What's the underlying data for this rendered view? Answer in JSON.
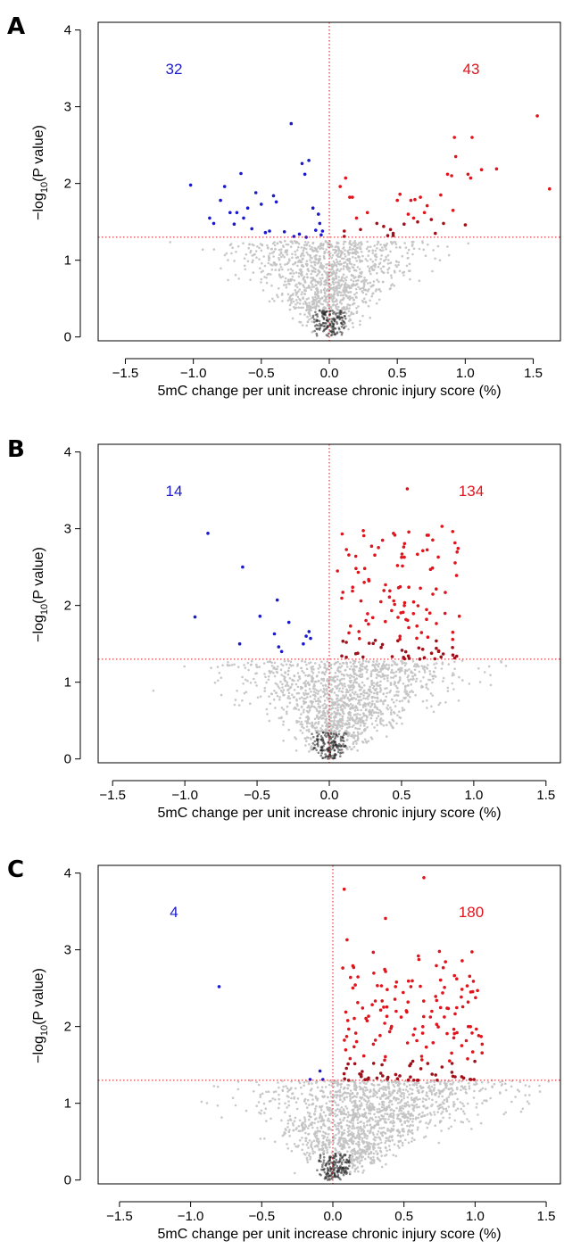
{
  "colors": {
    "negative": "#1a1acc",
    "positive": "#e0141c",
    "cloud_light": "#c2c2c2",
    "cloud_dark": "#202020",
    "threshold_line": "#e0141c"
  },
  "chart_data": [
    {
      "type": "scatter",
      "panel": "A",
      "xlabel": "5mC change per unit increase chronic injury score (%)",
      "ylabel": "−log10(P value)",
      "xlim": [
        -1.7,
        1.7
      ],
      "ylim": [
        -0.05,
        4.1
      ],
      "xticks": [
        -1.5,
        -1.0,
        -0.5,
        0.0,
        0.5,
        1.0,
        1.5
      ],
      "xtick_labels": [
        "−1.5",
        "−1.0",
        "−0.5",
        "0.0",
        "0.5",
        "1.0",
        "1.5"
      ],
      "yticks": [
        0,
        1,
        2,
        3,
        4
      ],
      "ytick_labels": [
        "0",
        "1",
        "2",
        "3",
        "4"
      ],
      "threshold_y": 1.3,
      "vline_x": 0,
      "neg_count": "32",
      "pos_count": "43",
      "cloud_xmax": 1.0,
      "cloud_ymax": 1.25,
      "cloud_n": 1300,
      "neg_points": [
        [
          -1.02,
          1.98
        ],
        [
          -0.88,
          1.55
        ],
        [
          -0.85,
          1.48
        ],
        [
          -0.8,
          1.78
        ],
        [
          -0.77,
          1.96
        ],
        [
          -0.73,
          1.62
        ],
        [
          -0.7,
          1.47
        ],
        [
          -0.68,
          1.62
        ],
        [
          -0.65,
          2.13
        ],
        [
          -0.63,
          1.55
        ],
        [
          -0.6,
          1.68
        ],
        [
          -0.57,
          1.41
        ],
        [
          -0.54,
          1.88
        ],
        [
          -0.5,
          1.73
        ],
        [
          -0.47,
          1.36
        ],
        [
          -0.44,
          1.38
        ],
        [
          -0.41,
          1.84
        ],
        [
          -0.39,
          1.76
        ],
        [
          -0.33,
          1.37
        ],
        [
          -0.28,
          2.78
        ],
        [
          -0.26,
          1.31
        ],
        [
          -0.2,
          2.26
        ],
        [
          -0.18,
          2.12
        ],
        [
          -0.17,
          1.3
        ],
        [
          -0.15,
          2.3
        ],
        [
          -0.12,
          1.68
        ],
        [
          -0.1,
          1.39
        ],
        [
          -0.08,
          1.6
        ],
        [
          -0.07,
          1.48
        ],
        [
          -0.05,
          1.38
        ],
        [
          -0.22,
          1.34
        ],
        [
          -0.06,
          1.33
        ]
      ],
      "pos_points": [
        [
          0.08,
          1.96
        ],
        [
          0.11,
          1.38
        ],
        [
          0.11,
          1.31
        ],
        [
          0.12,
          2.07
        ],
        [
          0.15,
          1.82
        ],
        [
          0.17,
          1.82
        ],
        [
          0.2,
          1.55
        ],
        [
          0.23,
          1.4
        ],
        [
          0.28,
          1.62
        ],
        [
          0.35,
          1.48
        ],
        [
          0.4,
          1.44
        ],
        [
          0.43,
          1.32
        ],
        [
          0.45,
          1.4
        ],
        [
          0.47,
          1.35
        ],
        [
          0.5,
          1.78
        ],
        [
          0.52,
          1.86
        ],
        [
          0.55,
          1.47
        ],
        [
          0.58,
          1.6
        ],
        [
          0.6,
          1.78
        ],
        [
          0.62,
          1.55
        ],
        [
          0.63,
          1.79
        ],
        [
          0.65,
          1.5
        ],
        [
          0.67,
          1.82
        ],
        [
          0.7,
          1.62
        ],
        [
          0.72,
          1.71
        ],
        [
          0.75,
          1.53
        ],
        [
          0.78,
          1.35
        ],
        [
          0.82,
          1.85
        ],
        [
          0.84,
          1.48
        ],
        [
          0.87,
          2.12
        ],
        [
          0.9,
          2.1
        ],
        [
          0.91,
          1.65
        ],
        [
          0.92,
          2.6
        ],
        [
          0.93,
          2.35
        ],
        [
          1.0,
          1.46
        ],
        [
          1.02,
          2.12
        ],
        [
          1.04,
          2.07
        ],
        [
          1.05,
          2.6
        ],
        [
          1.12,
          2.18
        ],
        [
          1.23,
          2.19
        ],
        [
          1.53,
          2.88
        ],
        [
          1.62,
          1.93
        ],
        [
          0.47,
          1.32
        ]
      ]
    },
    {
      "type": "scatter",
      "panel": "B",
      "xlabel": "5mC change per unit increase chronic injury score (%)",
      "ylabel": "−log10(P value)",
      "xlim": [
        -1.6,
        1.6
      ],
      "ylim": [
        -0.05,
        4.1
      ],
      "xticks": [
        -1.5,
        -1.0,
        -0.5,
        0.0,
        0.5,
        1.0,
        1.5
      ],
      "xtick_labels": [
        "−1.5",
        "−1.0",
        "−0.5",
        "0.0",
        "0.5",
        "1.0",
        "1.5"
      ],
      "yticks": [
        0,
        1,
        2,
        3,
        4
      ],
      "ytick_labels": [
        "0",
        "1",
        "2",
        "3",
        "4"
      ],
      "threshold_y": 1.3,
      "vline_x": 0,
      "neg_count": "14",
      "pos_count": "134",
      "cloud_xmax": 1.2,
      "cloud_ymax": 1.28,
      "cloud_n": 1500,
      "neg_points": [
        [
          -0.93,
          1.85
        ],
        [
          -0.84,
          2.94
        ],
        [
          -0.62,
          1.5
        ],
        [
          -0.6,
          2.5
        ],
        [
          -0.48,
          1.86
        ],
        [
          -0.38,
          1.63
        ],
        [
          -0.36,
          2.07
        ],
        [
          -0.35,
          1.46
        ],
        [
          -0.33,
          1.4
        ],
        [
          -0.28,
          1.78
        ],
        [
          -0.18,
          1.5
        ],
        [
          -0.14,
          1.66
        ],
        [
          -0.13,
          1.57
        ],
        [
          -0.16,
          1.6
        ]
      ],
      "pos_gen": {
        "n": 134,
        "seed": 77,
        "xmin": 0.05,
        "xmax": 0.9,
        "ymin": 1.3,
        "ymax": 3.05,
        "extra": [
          [
            0.54,
            3.52
          ],
          [
            0.78,
            3.03
          ],
          [
            0.9,
            1.86
          ]
        ]
      }
    },
    {
      "type": "scatter",
      "panel": "C",
      "xlabel": "5mC change per unit increase chronic injury score (%)",
      "ylabel": "−log10(P value)",
      "xlim": [
        -1.65,
        1.6
      ],
      "ylim": [
        -0.05,
        4.1
      ],
      "xticks": [
        -1.5,
        -1.0,
        -0.5,
        0.0,
        0.5,
        1.0,
        1.5
      ],
      "xtick_labels": [
        "−1.5",
        "−1.0",
        "−0.5",
        "0.0",
        "0.5",
        "1.0",
        "1.5"
      ],
      "yticks": [
        0,
        1,
        2,
        3,
        4
      ],
      "ytick_labels": [
        "0",
        "1",
        "2",
        "3",
        "4"
      ],
      "threshold_y": 1.3,
      "vline_x": 0,
      "neg_count": "4",
      "pos_count": "180",
      "cloud_xmax": 1.3,
      "cloud_ymax": 1.3,
      "cloud_n": 1700,
      "neg_points": [
        [
          -0.8,
          2.52
        ],
        [
          -0.16,
          1.31
        ],
        [
          -0.09,
          1.42
        ],
        [
          -0.07,
          1.31
        ]
      ],
      "pos_gen": {
        "n": 180,
        "seed": 131,
        "xmin": 0.05,
        "xmax": 1.05,
        "ymin": 1.3,
        "ymax": 3.0,
        "extra": [
          [
            0.08,
            3.79
          ],
          [
            0.1,
            3.13
          ],
          [
            0.37,
            3.41
          ],
          [
            0.64,
            3.94
          ],
          [
            1.05,
            1.77
          ]
        ]
      }
    }
  ]
}
